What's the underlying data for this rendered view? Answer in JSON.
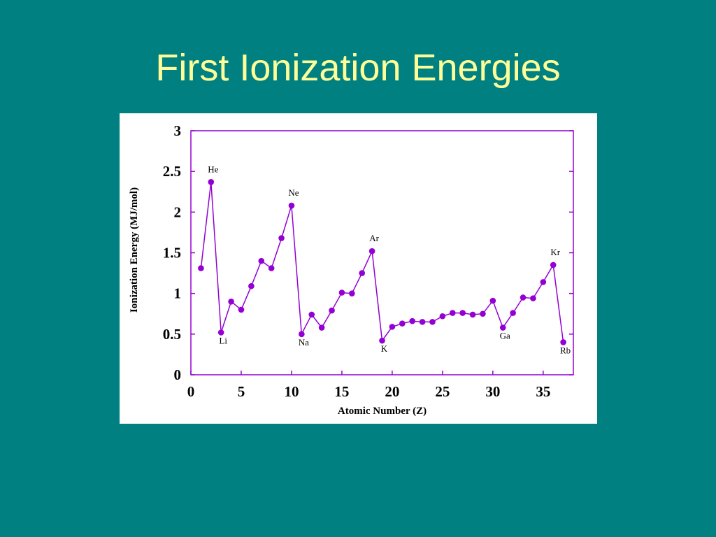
{
  "slide": {
    "title": "First Ionization Energies",
    "background": "#008080",
    "title_color": "#ffff99"
  },
  "chart_data": {
    "type": "line",
    "xlabel": "Atomic Number (Z)",
    "ylabel": "Ionization Energy (MJ/mol)",
    "xlim": [
      0,
      38
    ],
    "ylim": [
      0,
      3
    ],
    "xticks": [
      "0",
      "5",
      "10",
      "15",
      "20",
      "25",
      "30",
      "35"
    ],
    "yticks": [
      "0",
      "0.5",
      "1",
      "1.5",
      "2",
      "2.5",
      "3"
    ],
    "grid": false,
    "series_color": "#9400d3",
    "x": [
      1,
      2,
      3,
      4,
      5,
      6,
      7,
      8,
      9,
      10,
      11,
      12,
      13,
      14,
      15,
      16,
      17,
      18,
      19,
      20,
      21,
      22,
      23,
      24,
      25,
      26,
      27,
      28,
      29,
      30,
      31,
      32,
      33,
      34,
      35,
      36,
      37
    ],
    "y": [
      1.31,
      2.37,
      0.52,
      0.9,
      0.8,
      1.09,
      1.4,
      1.31,
      1.68,
      2.08,
      0.5,
      0.74,
      0.58,
      0.79,
      1.01,
      1.0,
      1.25,
      1.52,
      0.42,
      0.59,
      0.63,
      0.66,
      0.65,
      0.65,
      0.72,
      0.76,
      0.76,
      0.74,
      0.75,
      0.91,
      0.58,
      0.76,
      0.95,
      0.94,
      1.14,
      1.35,
      0.4
    ],
    "annotations": [
      {
        "label": "He",
        "x": 2,
        "pos": "above"
      },
      {
        "label": "Li",
        "x": 3,
        "pos": "below"
      },
      {
        "label": "Ne",
        "x": 10,
        "pos": "above"
      },
      {
        "label": "Na",
        "x": 11,
        "pos": "below"
      },
      {
        "label": "Ar",
        "x": 18,
        "pos": "above"
      },
      {
        "label": "K",
        "x": 19,
        "pos": "below"
      },
      {
        "label": "Ga",
        "x": 31,
        "pos": "below"
      },
      {
        "label": "Kr",
        "x": 36,
        "pos": "above"
      },
      {
        "label": "Rb",
        "x": 37,
        "pos": "below"
      }
    ]
  }
}
